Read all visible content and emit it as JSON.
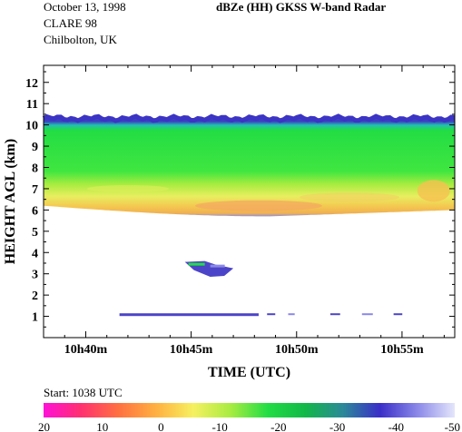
{
  "header": {
    "date": "October 13, 1998",
    "campaign": "CLARE 98",
    "site": "Chilbolton, UK",
    "title": "dBZe (HH)   GKSS  W-band Radar"
  },
  "footer": {
    "start": "Start: 1038 UTC"
  },
  "chart_data": {
    "type": "heatmap",
    "title": "dBZe (HH)   GKSS  W-band Radar",
    "xlabel": "TIME (UTC)",
    "ylabel": "HEIGHT AGL (km)",
    "x_ticks": [
      "10h40m",
      "10h45m",
      "10h50m",
      "10h55m"
    ],
    "y_ticks": [
      1,
      2,
      3,
      4,
      5,
      6,
      7,
      8,
      9,
      10,
      11,
      12
    ],
    "xlim_min": [
      38.0,
      57.5
    ],
    "ylim_km": [
      0,
      12.8
    ],
    "grid": false,
    "features": {
      "cloud_top_km": 10.3,
      "cloud_base_km_start": 6.2,
      "cloud_base_km_min": 5.7,
      "cloud_base_km_end": 6.0,
      "virga_patch": {
        "t_min": [
          44.7,
          47.0
        ],
        "height_km": [
          2.9,
          3.6
        ]
      },
      "near_ground_echo": {
        "t_min": [
          41.6,
          55.5
        ],
        "height_km": 1.1
      }
    },
    "colorbar": {
      "label_values": [
        "20",
        "10",
        "0",
        "-10",
        "-20",
        "-30",
        "-40",
        "-50"
      ],
      "range": [
        20,
        -50
      ],
      "colors": [
        "#ff10d8",
        "#ff3070",
        "#ff7040",
        "#ffb040",
        "#f6f060",
        "#a8ec40",
        "#22dd44",
        "#11b848",
        "#2a8a98",
        "#3a2ec8",
        "#8a88e8",
        "#e4e6fb"
      ]
    }
  }
}
